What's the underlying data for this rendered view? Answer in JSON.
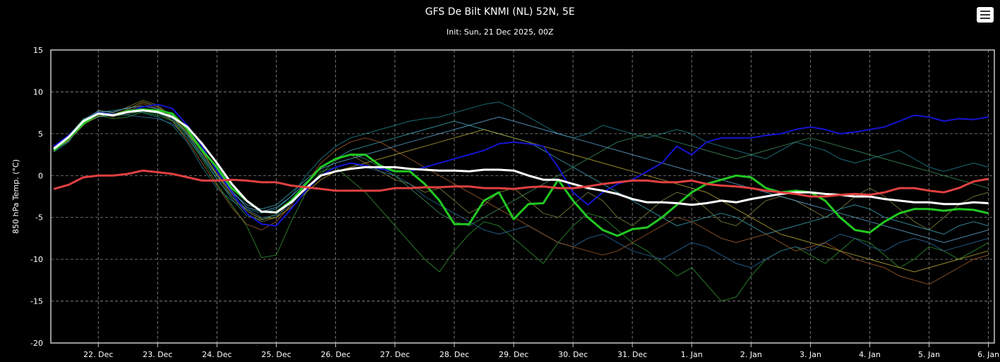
{
  "chart_data": {
    "type": "line",
    "title": "GFS De Bilt KNMI (NL) 52N, 5E",
    "subtitle": "Init: Sun, 21 Dec 2025, 00Z",
    "ylabel": "850 hPa Temp. (°C)",
    "xlabel": "",
    "ylim": [
      -20,
      15
    ],
    "yticks": [
      -20,
      -15,
      -10,
      -5,
      0,
      5,
      10,
      15
    ],
    "xlim": [
      21.2,
      37.1
    ],
    "x_unit": "day of December 2025 (32 = 1 Jan)",
    "x_ticks": [
      {
        "x": 22,
        "label": "22. Dec"
      },
      {
        "x": 23,
        "label": "23. Dec"
      },
      {
        "x": 24,
        "label": "24. Dec"
      },
      {
        "x": 25,
        "label": "25. Dec"
      },
      {
        "x": 26,
        "label": "26. Dec"
      },
      {
        "x": 27,
        "label": "27. Dec"
      },
      {
        "x": 28,
        "label": "28. Dec"
      },
      {
        "x": 29,
        "label": "29. Dec"
      },
      {
        "x": 30,
        "label": "30. Dec"
      },
      {
        "x": 31,
        "label": "31. Dec"
      },
      {
        "x": 32,
        "label": "1. Jan"
      },
      {
        "x": 33,
        "label": "2. Jan"
      },
      {
        "x": 34,
        "label": "3. Jan"
      },
      {
        "x": 35,
        "label": "4. Jan"
      },
      {
        "x": 36,
        "label": "5. Jan"
      },
      {
        "x": 37,
        "label": "6. Jan"
      }
    ],
    "grid": true,
    "legend": "none",
    "x": [
      21.25,
      21.5,
      21.75,
      22,
      22.25,
      22.5,
      22.75,
      23,
      23.25,
      23.5,
      23.75,
      24,
      24.25,
      24.5,
      24.75,
      25,
      25.25,
      25.5,
      25.75,
      26,
      26.25,
      26.5,
      26.75,
      27,
      27.25,
      27.5,
      27.75,
      28,
      28.25,
      28.5,
      28.75,
      29,
      29.25,
      29.5,
      29.75,
      30,
      30.25,
      30.5,
      30.75,
      31,
      31.25,
      31.5,
      31.75,
      32,
      32.25,
      32.5,
      32.75,
      33,
      33.25,
      33.5,
      33.75,
      34,
      34.25,
      34.5,
      34.75,
      35,
      35.25,
      35.5,
      35.75,
      36,
      36.25,
      36.5,
      36.75,
      37
    ],
    "series": [
      {
        "role": "ensemble member",
        "color": "#7f7f3a",
        "width": 1,
        "values": [
          3.0,
          4.2,
          6.0,
          7.8,
          7.5,
          8.2,
          9.0,
          8.4,
          7.0,
          5.0,
          3.0,
          0.0,
          -2.5,
          -4.5,
          -5.5,
          -5.0,
          -3.0,
          -1.0,
          1.0,
          2.0,
          2.5,
          1.5,
          0.5,
          -0.5,
          -1.0,
          -2.0,
          -1.5,
          -3.0,
          -4.5,
          -3.5,
          -2.0,
          -1.5,
          -3.0,
          -4.5,
          -5.0,
          -3.5,
          -2.0,
          -3.0,
          -5.0,
          -6.0,
          -4.5,
          -3.0,
          -2.0,
          -2.5,
          -4.0,
          -5.5,
          -6.0,
          -4.5,
          -3.0,
          -2.5,
          -3.0,
          -4.0,
          -5.0,
          -4.0,
          -2.5,
          -1.5,
          -2.5,
          -4.0,
          -5.5,
          -6.5,
          -5.0,
          -3.5,
          -2.5,
          -2.0
        ]
      },
      {
        "role": "ensemble member",
        "color": "#2f8f2f",
        "width": 1,
        "values": [
          3.3,
          4.8,
          6.8,
          7.2,
          6.8,
          7.0,
          7.6,
          7.2,
          6.5,
          4.5,
          2.0,
          -1.0,
          -3.5,
          -6.0,
          -9.8,
          -9.5,
          -5.5,
          -2.0,
          0.5,
          1.0,
          -0.5,
          -2.0,
          -4.0,
          -6.0,
          -8.0,
          -10.0,
          -11.5,
          -9.0,
          -7.0,
          -5.5,
          -6.0,
          -7.5,
          -9.0,
          -10.5,
          -8.0,
          -6.0,
          -4.5,
          -5.0,
          -6.5,
          -8.0,
          -9.0,
          -10.5,
          -12.0,
          -11.0,
          -13.0,
          -15.0,
          -14.5,
          -12.0,
          -10.0,
          -9.0,
          -8.5,
          -9.5,
          -10.5,
          -9.0,
          -7.5,
          -8.0,
          -9.5,
          -11.0,
          -10.0,
          -8.5,
          -9.0,
          -10.0,
          -9.0,
          -8.0
        ]
      },
      {
        "role": "ensemble member",
        "color": "#1e7e8c",
        "width": 1,
        "values": [
          2.8,
          4.0,
          6.5,
          7.5,
          7.8,
          8.0,
          7.5,
          7.0,
          6.0,
          4.0,
          1.0,
          -1.5,
          -3.0,
          -4.0,
          -4.5,
          -4.0,
          -2.5,
          0.0,
          2.0,
          3.5,
          4.5,
          5.0,
          5.5,
          6.0,
          6.5,
          6.8,
          7.0,
          7.5,
          8.0,
          8.5,
          8.8,
          8.0,
          7.0,
          6.0,
          5.0,
          4.5,
          5.0,
          6.0,
          5.5,
          5.0,
          4.5,
          5.0,
          5.5,
          5.0,
          4.0,
          3.5,
          3.0,
          2.5,
          2.0,
          3.0,
          4.0,
          3.5,
          3.0,
          2.0,
          1.5,
          2.0,
          2.5,
          3.0,
          2.0,
          1.0,
          0.5,
          1.0,
          1.5,
          1.0
        ]
      },
      {
        "role": "ensemble member",
        "color": "#3aa0b0",
        "width": 1,
        "values": [
          3.1,
          4.5,
          6.2,
          7.0,
          7.2,
          7.5,
          7.8,
          7.5,
          6.8,
          5.0,
          2.5,
          0.0,
          -2.0,
          -3.5,
          -4.0,
          -3.5,
          -2.0,
          -0.5,
          1.0,
          2.0,
          3.0,
          3.5,
          4.0,
          4.5,
          5.0,
          5.5,
          6.0,
          6.5,
          6.0,
          5.5,
          5.0,
          4.5,
          4.0,
          3.0,
          2.0,
          1.0,
          0.0,
          -1.0,
          -2.0,
          -3.0,
          -4.0,
          -5.0,
          -6.0,
          -5.5,
          -5.0,
          -4.5,
          -5.0,
          -6.0,
          -7.0,
          -6.5,
          -6.0,
          -5.5,
          -5.0,
          -4.0,
          -3.5,
          -4.0,
          -5.0,
          -5.5,
          -6.0,
          -6.5,
          -7.0,
          -6.0,
          -5.5,
          -6.0
        ]
      },
      {
        "role": "ensemble member",
        "color": "#2a6a9a",
        "width": 1,
        "values": [
          3.0,
          4.6,
          6.6,
          7.6,
          7.4,
          7.2,
          7.0,
          6.8,
          6.2,
          4.5,
          2.2,
          -0.5,
          -2.5,
          -4.0,
          -5.0,
          -4.8,
          -3.5,
          -1.5,
          0.0,
          1.0,
          1.5,
          1.0,
          0.5,
          0.0,
          -1.0,
          -2.5,
          -3.5,
          -4.5,
          -5.5,
          -6.5,
          -7.0,
          -6.5,
          -6.0,
          -7.0,
          -8.0,
          -8.5,
          -7.5,
          -7.0,
          -8.0,
          -9.0,
          -9.5,
          -10.0,
          -9.0,
          -8.0,
          -8.5,
          -9.5,
          -10.5,
          -11.0,
          -10.0,
          -9.0,
          -8.5,
          -9.0,
          -8.0,
          -7.0,
          -7.5,
          -8.5,
          -9.0,
          -8.0,
          -7.5,
          -8.0,
          -9.0,
          -8.5,
          -8.0,
          -7.5
        ]
      },
      {
        "role": "ensemble member",
        "color": "#a05a28",
        "width": 1,
        "values": [
          3.2,
          4.4,
          6.4,
          7.4,
          7.0,
          7.6,
          8.6,
          8.0,
          6.5,
          4.2,
          1.5,
          -1.2,
          -3.8,
          -5.8,
          -6.5,
          -5.5,
          -3.5,
          -1.0,
          1.5,
          3.0,
          4.0,
          4.5,
          4.0,
          3.0,
          2.0,
          1.0,
          0.0,
          -1.0,
          -2.0,
          -3.0,
          -4.0,
          -5.0,
          -6.0,
          -7.0,
          -8.0,
          -8.5,
          -9.0,
          -9.5,
          -9.0,
          -8.0,
          -7.0,
          -6.0,
          -5.0,
          -5.5,
          -6.5,
          -7.5,
          -8.0,
          -7.5,
          -7.0,
          -8.0,
          -9.0,
          -8.5,
          -8.0,
          -9.0,
          -10.0,
          -10.5,
          -11.0,
          -12.0,
          -12.5,
          -13.0,
          -12.0,
          -11.0,
          -10.0,
          -9.5
        ]
      },
      {
        "role": "ensemble member",
        "color": "#b0a030",
        "width": 1,
        "values": [
          2.9,
          4.3,
          6.1,
          7.1,
          7.3,
          7.9,
          8.8,
          8.2,
          7.0,
          5.2,
          2.8,
          0.2,
          -2.2,
          -4.2,
          -5.2,
          -5.0,
          -3.8,
          -2.0,
          -0.5,
          0.5,
          1.0,
          1.5,
          2.0,
          2.5,
          3.0,
          3.5,
          4.0,
          4.5,
          5.0,
          5.5,
          5.0,
          4.5,
          4.0,
          3.5,
          3.0,
          2.5,
          2.0,
          1.5,
          1.0,
          0.5,
          0.0,
          -0.5,
          -1.0,
          -1.5,
          -2.0,
          -3.0,
          -4.0,
          -5.0,
          -6.0,
          -7.0,
          -7.5,
          -8.0,
          -8.5,
          -9.0,
          -9.5,
          -10.0,
          -10.5,
          -11.0,
          -11.5,
          -11.0,
          -10.5,
          -10.0,
          -9.5,
          -9.0
        ]
      },
      {
        "role": "ensemble member",
        "color": "#3c8c5a",
        "width": 1,
        "values": [
          3.0,
          4.1,
          6.3,
          7.3,
          7.1,
          7.3,
          7.7,
          7.4,
          6.6,
          4.8,
          2.3,
          -0.3,
          -2.8,
          -4.8,
          -5.3,
          -4.6,
          -3.2,
          -1.6,
          0.2,
          1.8,
          2.6,
          2.0,
          1.0,
          0.0,
          -1.5,
          -3.0,
          -4.5,
          -5.5,
          -6.0,
          -5.0,
          -4.0,
          -3.0,
          -2.0,
          -1.0,
          0.0,
          1.0,
          2.0,
          3.0,
          4.0,
          4.5,
          5.0,
          4.5,
          4.0,
          3.5,
          3.0,
          2.5,
          2.0,
          2.5,
          3.0,
          3.5,
          4.0,
          4.5,
          4.0,
          3.5,
          3.0,
          2.5,
          2.0,
          1.5,
          1.0,
          0.5,
          0.0,
          -0.5,
          -1.0,
          -1.5
        ]
      },
      {
        "role": "ensemble member",
        "color": "#5aa0c8",
        "width": 1,
        "values": [
          3.4,
          4.7,
          6.7,
          7.7,
          7.6,
          8.1,
          8.3,
          8.0,
          7.2,
          5.5,
          3.2,
          0.8,
          -1.8,
          -3.8,
          -4.3,
          -3.8,
          -2.5,
          -0.8,
          0.8,
          1.5,
          2.0,
          2.5,
          3.0,
          3.5,
          4.0,
          4.5,
          5.0,
          5.5,
          6.0,
          6.5,
          7.0,
          6.5,
          6.0,
          5.5,
          5.0,
          4.5,
          4.0,
          3.5,
          3.0,
          2.5,
          2.0,
          1.5,
          1.0,
          0.5,
          0.0,
          -0.5,
          -1.0,
          -1.5,
          -2.0,
          -2.5,
          -3.0,
          -3.5,
          -4.0,
          -4.5,
          -5.0,
          -5.5,
          -6.0,
          -6.5,
          -7.0,
          -7.5,
          -8.0,
          -7.5,
          -7.0,
          -6.5
        ]
      },
      {
        "role": "operational (blue)",
        "color": "#1414d2",
        "width": 2,
        "values": [
          3.5,
          4.8,
          6.5,
          7.5,
          7.3,
          7.6,
          8.2,
          8.5,
          8.0,
          6.0,
          3.5,
          0.5,
          -2.0,
          -4.5,
          -5.8,
          -6.0,
          -4.0,
          -1.8,
          0.0,
          1.0,
          1.5,
          1.2,
          0.8,
          0.5,
          0.5,
          1.0,
          1.5,
          2.0,
          2.5,
          3.0,
          3.8,
          4.0,
          3.8,
          3.5,
          1.0,
          -2.0,
          -3.5,
          -2.0,
          -1.0,
          -0.5,
          0.5,
          1.5,
          3.5,
          2.5,
          4.0,
          4.5,
          4.5,
          4.5,
          4.8,
          5.0,
          5.5,
          5.8,
          5.5,
          5.0,
          5.2,
          5.5,
          5.8,
          6.5,
          7.2,
          7.0,
          6.5,
          6.8,
          6.7,
          7.0
        ]
      },
      {
        "role": "control (green)",
        "color": "#22c822",
        "width": 3,
        "values": [
          3.0,
          4.5,
          6.2,
          7.4,
          7.2,
          7.7,
          7.9,
          7.8,
          7.4,
          5.5,
          3.0,
          1.0,
          -1.5,
          -3.0,
          -4.3,
          -4.4,
          -3.0,
          -1.0,
          1.0,
          2.0,
          2.5,
          2.5,
          1.2,
          0.5,
          0.5,
          -1.0,
          -3.0,
          -5.8,
          -5.8,
          -3.0,
          -2.0,
          -5.2,
          -3.4,
          -3.3,
          -0.5,
          -3.0,
          -5.0,
          -6.5,
          -7.2,
          -6.4,
          -6.2,
          -5.0,
          -3.5,
          -2.0,
          -1.0,
          -0.5,
          0.0,
          -0.2,
          -1.5,
          -2.0,
          -1.8,
          -2.0,
          -3.0,
          -5.0,
          -6.5,
          -6.8,
          -5.5,
          -4.5,
          -4.0,
          -4.0,
          -4.2,
          -4.0,
          -4.1,
          -4.5
        ]
      },
      {
        "role": "ensemble mean (white)",
        "color": "#ffffff",
        "width": 3,
        "values": [
          3.2,
          4.6,
          6.5,
          7.4,
          7.2,
          7.6,
          7.8,
          7.6,
          7.0,
          5.8,
          3.8,
          1.5,
          -1.0,
          -3.0,
          -4.3,
          -4.4,
          -3.2,
          -1.5,
          0.0,
          0.5,
          0.8,
          1.0,
          1.0,
          1.0,
          0.8,
          0.7,
          0.6,
          0.6,
          0.5,
          0.7,
          0.7,
          0.6,
          0.0,
          -0.5,
          -0.5,
          -1.0,
          -1.5,
          -1.8,
          -2.2,
          -2.8,
          -3.2,
          -3.2,
          -3.3,
          -3.5,
          -3.3,
          -3.0,
          -3.2,
          -2.8,
          -2.5,
          -2.2,
          -2.0,
          -2.0,
          -2.2,
          -2.3,
          -2.5,
          -2.5,
          -2.8,
          -3.0,
          -3.2,
          -3.2,
          -3.4,
          -3.4,
          -3.2,
          -3.3
        ]
      },
      {
        "role": "climatology (red)",
        "color": "#e04040",
        "width": 3,
        "values": [
          -1.6,
          -1.1,
          -0.2,
          0.0,
          0.0,
          0.2,
          0.6,
          0.4,
          0.2,
          -0.2,
          -0.6,
          -0.6,
          -0.5,
          -0.6,
          -0.8,
          -0.8,
          -1.2,
          -1.4,
          -1.6,
          -1.8,
          -1.8,
          -1.8,
          -1.8,
          -1.5,
          -1.5,
          -1.4,
          -1.4,
          -1.3,
          -1.3,
          -1.5,
          -1.5,
          -1.6,
          -1.4,
          -1.3,
          -1.5,
          -1.5,
          -1.3,
          -1.0,
          -0.8,
          -0.6,
          -0.6,
          -0.8,
          -0.8,
          -0.6,
          -1.0,
          -1.2,
          -1.3,
          -1.5,
          -1.8,
          -2.0,
          -2.2,
          -2.5,
          -2.5,
          -2.3,
          -2.2,
          -2.3,
          -2.0,
          -1.5,
          -1.5,
          -1.8,
          -2.0,
          -1.5,
          -0.7,
          -0.4
        ]
      }
    ]
  },
  "menu": {
    "icon": "hamburger-icon"
  }
}
